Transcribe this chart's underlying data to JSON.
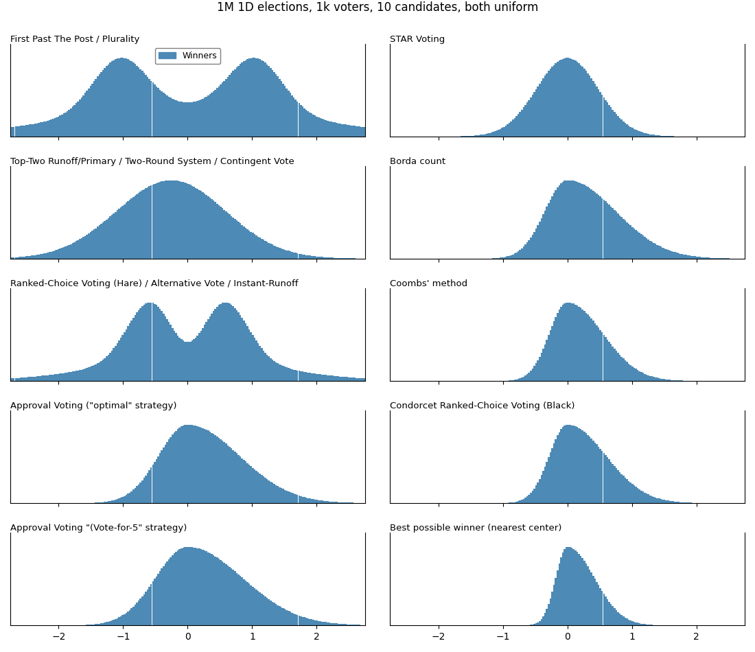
{
  "title": "1M 1D elections, 1k voters, 10 candidates, both uniform",
  "bar_color": "#4d8ab5",
  "xlim": [
    -2.75,
    2.75
  ],
  "n_bins": 200,
  "subplots": [
    {
      "title": "First Past The Post / Plurality",
      "shape": "fptp",
      "row": 0,
      "col": 0
    },
    {
      "title": "STAR Voting",
      "shape": "star",
      "row": 0,
      "col": 1
    },
    {
      "title": "Top-Two Runoff/Primary / Two-Round System / Contingent Vote",
      "shape": "top_two",
      "row": 1,
      "col": 0
    },
    {
      "title": "Borda count",
      "shape": "borda",
      "row": 1,
      "col": 1
    },
    {
      "title": "Ranked-Choice Voting (Hare) / Alternative Vote / Instant-Runoff",
      "shape": "hare",
      "row": 2,
      "col": 0
    },
    {
      "title": "Coombs' method",
      "shape": "coombs",
      "row": 2,
      "col": 1
    },
    {
      "title": "Approval Voting (\"optimal\" strategy)",
      "shape": "approval_opt",
      "row": 3,
      "col": 0
    },
    {
      "title": "Condorcet Ranked-Choice Voting (Black)",
      "shape": "condorcet",
      "row": 3,
      "col": 1
    },
    {
      "title": "Approval Voting \"(Vote-for-5\" strategy)",
      "shape": "approval_v5",
      "row": 4,
      "col": 0
    },
    {
      "title": "Best possible winner (nearest center)",
      "shape": "best",
      "row": 4,
      "col": 1
    }
  ]
}
